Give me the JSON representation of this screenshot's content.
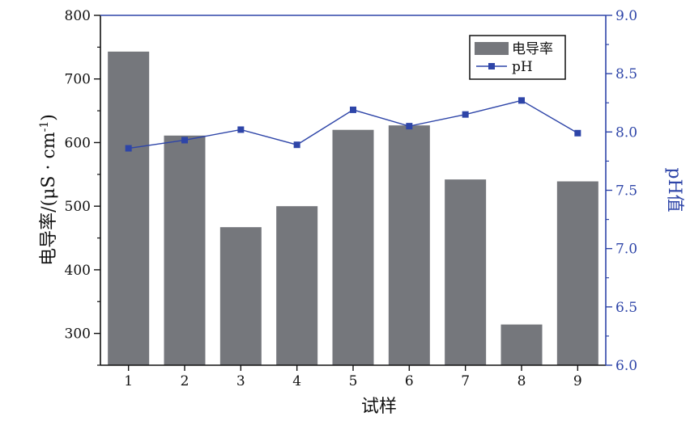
{
  "chart_data": {
    "type": "bar",
    "categories": [
      "1",
      "2",
      "3",
      "4",
      "5",
      "6",
      "7",
      "8",
      "9"
    ],
    "xlabel": "试样",
    "series": [
      {
        "name": "电导率",
        "type": "bar",
        "axis": "left",
        "color": "#75777c",
        "values": [
          743,
          611,
          467,
          500,
          620,
          627,
          542,
          314,
          539
        ]
      },
      {
        "name": "pH",
        "type": "line",
        "axis": "right",
        "color": "#2e45a8",
        "marker": "square",
        "values": [
          7.86,
          7.93,
          8.02,
          7.89,
          8.19,
          8.05,
          8.15,
          8.27,
          7.99
        ]
      }
    ],
    "y_left": {
      "label_main": "电导率/(μS · cm",
      "label_sup": "-1",
      "label_end": ")",
      "ylim": [
        250,
        800
      ],
      "ticks": [
        300,
        400,
        500,
        600,
        700,
        800
      ],
      "minor_ticks": [
        250,
        350,
        450,
        550,
        650,
        750
      ]
    },
    "y_right": {
      "label": "pH值",
      "ylim": [
        6.0,
        9.0
      ],
      "ticks": [
        "6.0",
        "6.5",
        "7.0",
        "7.5",
        "8.0",
        "8.5",
        "9.0"
      ],
      "color": "#2e45a8"
    },
    "grid": false,
    "legend_position": "top-right"
  }
}
